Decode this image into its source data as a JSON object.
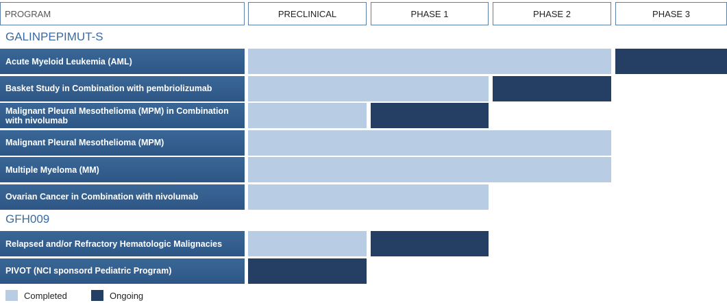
{
  "header": [
    "PROGRAM",
    "PRECLINICAL",
    "PHASE 1",
    "PHASE 2",
    "PHASE 3"
  ],
  "groups": [
    {
      "name": "GALINPEPIMUT-S",
      "programs": [
        {
          "name": "Acute Myeloid Leukemia (AML)",
          "completed": 3,
          "ongoing": 1
        },
        {
          "name": "Basket Study in Combination with pembriolizumab",
          "completed": 2,
          "ongoing": 1
        },
        {
          "name": "Malignant Pleural Mesothelioma (MPM) in Combination with nivolumab",
          "completed": 1,
          "ongoing": 1
        },
        {
          "name": "Malignant Pleural Mesothelioma (MPM)",
          "completed": 3,
          "ongoing": 0
        },
        {
          "name": "Multiple Myeloma (MM)",
          "completed": 3,
          "ongoing": 0
        },
        {
          "name": "Ovarian Cancer in Combination with nivolumab",
          "completed": 2,
          "ongoing": 0
        }
      ]
    },
    {
      "name": "GFH009",
      "programs": [
        {
          "name": "Relapsed and/or Refractory Hematologic Malignacies",
          "completed": 1,
          "ongoing": 1
        },
        {
          "name": "PIVOT (NCI sponsord Pediatric Program)",
          "completed": 0,
          "ongoing": 1
        }
      ]
    }
  ],
  "legend": {
    "completed": "Completed",
    "ongoing": "Ongoing"
  }
}
